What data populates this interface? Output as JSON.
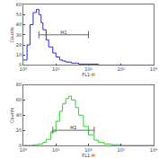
{
  "chart_data": [
    {
      "type": "line",
      "color": "#2a2ad0",
      "log": "x",
      "x_label": "FL1-H",
      "y_label": "Counts",
      "x": [
        1,
        1.3,
        1.6,
        2,
        2.5,
        3,
        3.5,
        4,
        5,
        6,
        8,
        10,
        13,
        16,
        20,
        30,
        50,
        100,
        200,
        1000,
        10000
      ],
      "values": [
        5,
        20,
        40,
        52,
        55,
        50,
        42,
        35,
        25,
        18,
        12,
        8,
        5,
        4,
        3,
        2,
        1,
        1,
        0,
        0,
        0
      ],
      "xlim": [
        1,
        10000
      ],
      "xticks": [
        {
          "value": 1,
          "label": "10⁰"
        },
        {
          "value": 10,
          "label": "10¹"
        },
        {
          "value": 100,
          "label": "10²"
        },
        {
          "value": 1000,
          "label": "10³"
        },
        {
          "value": 10000,
          "label": "10⁴"
        }
      ],
      "ylim": [
        0,
        60
      ],
      "yticks": [
        0,
        10,
        20,
        30,
        40,
        50,
        60
      ],
      "gate": {
        "label": "M1",
        "x0": 3,
        "x1": 100,
        "y": 30
      }
    },
    {
      "type": "line",
      "color": "#33cc33",
      "log": "x",
      "x_label": "FL1-H",
      "y_label": "Counts",
      "x": [
        1,
        2,
        3,
        4,
        5,
        7,
        10,
        13,
        16,
        20,
        25,
        30,
        40,
        50,
        70,
        100,
        150,
        200,
        300,
        500,
        1000,
        10000
      ],
      "values": [
        0,
        1,
        2,
        4,
        8,
        18,
        32,
        45,
        55,
        62,
        65,
        60,
        50,
        40,
        25,
        14,
        7,
        4,
        2,
        1,
        0,
        0
      ],
      "xlim": [
        1,
        10000
      ],
      "xticks": [
        {
          "value": 1,
          "label": "10⁰"
        },
        {
          "value": 10,
          "label": "10¹"
        },
        {
          "value": 100,
          "label": "10²"
        },
        {
          "value": 1000,
          "label": "10³"
        },
        {
          "value": 10000,
          "label": "10⁴"
        }
      ],
      "ylim": [
        0,
        80
      ],
      "yticks": [
        0,
        20,
        40,
        60,
        80
      ],
      "gate": {
        "label": "M2",
        "x0": 8,
        "x1": 150,
        "y": 20
      }
    }
  ]
}
